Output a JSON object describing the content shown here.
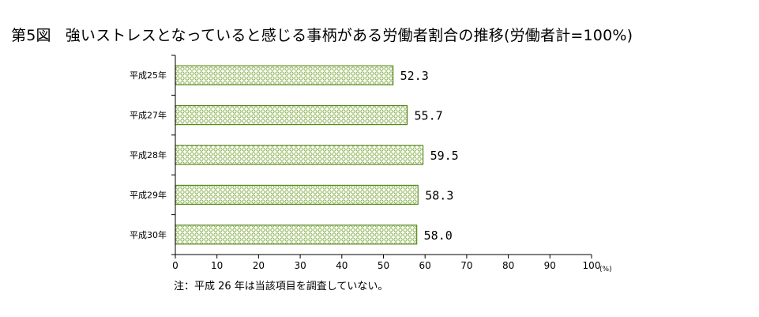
{
  "title_number": "第5図",
  "title_text": "強いストレスとなっていると感じる事柄がある労働者割合の推移(労働者計=100%)",
  "note": "注：平成 26 年は当該項目を調査していない。",
  "chart_data": {
    "type": "bar",
    "orientation": "horizontal",
    "categories": [
      "平成25年",
      "平成27年",
      "平成28年",
      "平成29年",
      "平成30年"
    ],
    "values": [
      52.3,
      55.7,
      59.5,
      58.3,
      58.0
    ],
    "value_labels": [
      "52.3",
      "55.7",
      "59.5",
      "58.3",
      "58.0"
    ],
    "xlim": [
      0,
      100
    ],
    "xticks": [
      "0",
      "10",
      "20",
      "30",
      "40",
      "50",
      "60",
      "70",
      "80",
      "90",
      "100"
    ],
    "xunit": "(%)",
    "grid": false,
    "bar_color": "#5a8a1e",
    "bar_fill_pattern": "#a8c97a"
  }
}
